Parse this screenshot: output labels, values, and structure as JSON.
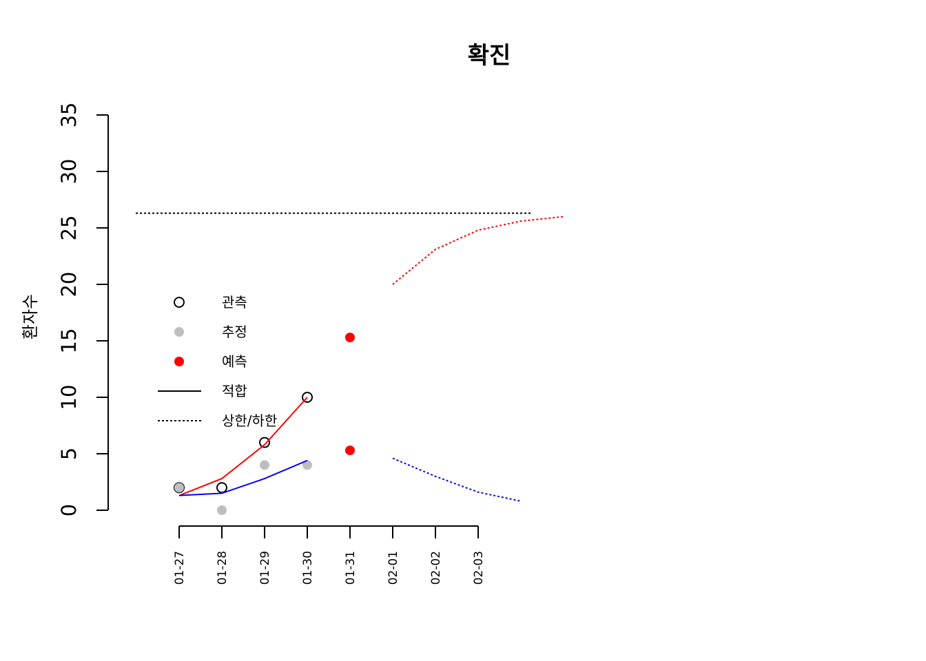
{
  "chart_data": {
    "type": "line",
    "title": "확진",
    "ylabel": "환자수",
    "ylim": [
      0,
      35
    ],
    "yticks": [
      0,
      5,
      10,
      15,
      20,
      25,
      30,
      35
    ],
    "x_labels": [
      "01-27",
      "01-28",
      "01-29",
      "01-30",
      "01-31",
      "02-01",
      "02-02",
      "02-03"
    ],
    "grid": false,
    "legend_position": "center-left",
    "legend": [
      {
        "label": "관측",
        "symbol": "open-circle",
        "color": "#000000"
      },
      {
        "label": "추정",
        "symbol": "filled-circle",
        "color": "#bebebe"
      },
      {
        "label": "예측",
        "symbol": "filled-circle",
        "color": "#ff0000"
      },
      {
        "label": "적합",
        "symbol": "solid-line",
        "color": "#000000"
      },
      {
        "label": "상한/하한",
        "symbol": "dotted-line",
        "color": "#000000"
      }
    ],
    "series": [
      {
        "key": "observed",
        "type": "scatter",
        "marker": "open-circle",
        "color": "#000000",
        "x": [
          "01-27",
          "01-28",
          "01-29",
          "01-30"
        ],
        "y": [
          2,
          2,
          6,
          10
        ]
      },
      {
        "key": "estimated",
        "type": "scatter",
        "marker": "filled-circle",
        "color": "#bebebe",
        "x": [
          "01-27",
          "01-28",
          "01-29",
          "01-30"
        ],
        "y": [
          2,
          0,
          4,
          4
        ]
      },
      {
        "key": "predicted",
        "type": "scatter",
        "marker": "filled-circle",
        "color": "#ff0000",
        "x": [
          "01-31",
          "01-31"
        ],
        "y": [
          15.3,
          5.3
        ]
      },
      {
        "key": "fit_upper",
        "type": "line",
        "style": "solid",
        "color": "#ff0000",
        "x": [
          "01-27",
          "01-28",
          "01-29",
          "01-30"
        ],
        "y": [
          1.3,
          2.8,
          5.8,
          10
        ]
      },
      {
        "key": "fit_lower",
        "type": "line",
        "style": "solid",
        "color": "#0000ff",
        "x": [
          "01-27",
          "01-28",
          "01-29",
          "01-30"
        ],
        "y": [
          1.3,
          1.5,
          2.8,
          4.4
        ]
      },
      {
        "key": "bound_upper",
        "type": "line",
        "style": "dotted",
        "color": "#ff0000",
        "x": [
          6,
          7,
          8,
          9,
          10
        ],
        "y": [
          20,
          23.1,
          24.8,
          25.6,
          26.0
        ]
      },
      {
        "key": "bound_lower",
        "type": "line",
        "style": "dotted",
        "color": "#0000ff",
        "x": [
          6,
          7,
          8,
          9
        ],
        "y": [
          4.6,
          3.0,
          1.6,
          0.8
        ]
      },
      {
        "key": "reference",
        "type": "hline",
        "style": "dotted",
        "color": "#000000",
        "y": 26.3
      }
    ]
  }
}
